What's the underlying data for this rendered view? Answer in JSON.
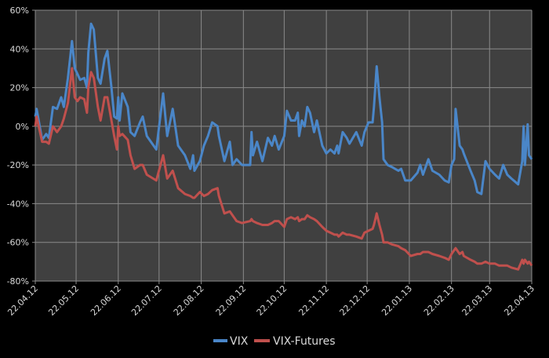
{
  "chart_data": {
    "type": "line",
    "title": "",
    "xlabel": "",
    "ylabel": "",
    "ylim": [
      -80,
      60
    ],
    "yticks": [
      60,
      40,
      20,
      0,
      -20,
      -40,
      -60,
      -80
    ],
    "ytick_labels": [
      "60%",
      "40%",
      "20%",
      "0%",
      "-20%",
      "-40%",
      "-60%",
      "-80%"
    ],
    "xlim": [
      "2012-04-22",
      "2013-04-22"
    ],
    "xticks": [
      "2012-04-22",
      "2012-05-22",
      "2012-06-22",
      "2012-07-22",
      "2012-08-22",
      "2012-09-22",
      "2012-10-22",
      "2012-11-22",
      "2012-12-22",
      "2013-01-22",
      "2013-02-22",
      "2013-03-22",
      "2013-04-22"
    ],
    "xtick_labels": [
      "22.04.12",
      "22.05.12",
      "22.06.12",
      "22.07.12",
      "22.08.12",
      "22.09.12",
      "22.10.12",
      "22.11.12",
      "22.12.12",
      "22.01.13",
      "22.02.13",
      "22.03.13",
      "22.04.13"
    ],
    "grid": true,
    "legend": "bottom",
    "background": "#404040",
    "x": [
      "2012-04-22",
      "2012-04-23",
      "2012-04-27",
      "2012-04-30",
      "2012-05-02",
      "2012-05-05",
      "2012-05-08",
      "2012-05-11",
      "2012-05-13",
      "2012-05-16",
      "2012-05-19",
      "2012-05-21",
      "2012-05-23",
      "2012-05-25",
      "2012-05-28",
      "2012-05-30",
      "2012-05-31",
      "2012-06-02",
      "2012-06-04",
      "2012-06-07",
      "2012-06-09",
      "2012-06-12",
      "2012-06-14",
      "2012-06-17",
      "2012-06-19",
      "2012-06-21",
      "2012-06-22",
      "2012-06-23",
      "2012-06-25",
      "2012-06-29",
      "2012-07-01",
      "2012-07-04",
      "2012-07-08",
      "2012-07-10",
      "2012-07-13",
      "2012-07-20",
      "2012-07-25",
      "2012-07-28",
      "2012-08-01",
      "2012-08-05",
      "2012-08-10",
      "2012-08-14",
      "2012-08-16",
      "2012-08-17",
      "2012-08-21",
      "2012-08-24",
      "2012-08-27",
      "2012-08-30",
      "2012-09-03",
      "2012-09-04",
      "2012-09-08",
      "2012-09-12",
      "2012-09-14",
      "2012-09-17",
      "2012-09-21",
      "2012-09-27",
      "2012-09-28",
      "2012-09-29",
      "2012-10-02",
      "2012-10-06",
      "2012-10-10",
      "2012-10-13",
      "2012-10-15",
      "2012-10-18",
      "2012-10-22",
      "2012-10-24",
      "2012-10-27",
      "2012-10-30",
      "2012-11-01",
      "2012-11-02",
      "2012-11-04",
      "2012-11-06",
      "2012-11-08",
      "2012-11-10",
      "2012-11-13",
      "2012-11-15",
      "2012-11-19",
      "2012-11-22",
      "2012-11-25",
      "2012-11-28",
      "2012-11-30",
      "2012-12-01",
      "2012-12-04",
      "2012-12-07",
      "2012-12-09",
      "2012-12-14",
      "2012-12-18",
      "2012-12-20",
      "2012-12-23",
      "2012-12-26",
      "2012-12-27",
      "2012-12-29",
      "2012-12-31",
      "2013-01-02",
      "2013-01-03",
      "2013-01-06",
      "2013-01-09",
      "2013-01-14",
      "2013-01-16",
      "2013-01-19",
      "2013-01-23",
      "2013-01-28",
      "2013-01-30",
      "2013-02-01",
      "2013-02-05",
      "2013-02-08",
      "2013-02-13",
      "2013-02-17",
      "2013-02-20",
      "2013-02-22",
      "2013-02-24",
      "2013-02-25",
      "2013-02-28",
      "2013-03-02",
      "2013-03-03",
      "2013-03-08",
      "2013-03-11",
      "2013-03-13",
      "2013-03-16",
      "2013-03-19",
      "2013-03-22",
      "2013-03-26",
      "2013-03-29",
      "2013-04-01",
      "2013-04-04",
      "2013-04-07",
      "2013-04-12",
      "2013-04-15",
      "2013-04-16",
      "2013-04-17",
      "2013-04-19",
      "2013-04-20",
      "2013-04-22"
    ],
    "series": [
      {
        "name": "VIX",
        "color": "#4a86c8",
        "values": [
          5,
          9,
          -7,
          -4,
          -6,
          10,
          9,
          15,
          10,
          25,
          44,
          30,
          27,
          24,
          25,
          20,
          38,
          53,
          50,
          25,
          22,
          35,
          39,
          20,
          5,
          4,
          15,
          3,
          17,
          10,
          -3,
          -5,
          2,
          5,
          -5,
          -12,
          17,
          -5,
          9,
          -10,
          -15,
          -22,
          -15,
          -23,
          -18,
          -10,
          -5,
          2,
          0,
          -5,
          -18,
          -8,
          -20,
          -17,
          -20,
          -20,
          -3,
          -15,
          -8,
          -18,
          -6,
          -10,
          -5,
          -12,
          -5,
          8,
          3,
          3,
          7,
          -5,
          3,
          0,
          10,
          7,
          -3,
          3,
          -10,
          -14,
          -12,
          -14,
          -10,
          -14,
          -3,
          -6,
          -9,
          -3,
          -10,
          -3,
          2,
          2,
          10,
          31,
          15,
          2,
          -17,
          -20,
          -21,
          -23,
          -22,
          -28,
          -28,
          -24,
          -20,
          -25,
          -17,
          -23,
          -25,
          -28,
          -29,
          -20,
          -17,
          9,
          -10,
          -12,
          -14,
          -23,
          -28,
          -34,
          -35,
          -18,
          -22,
          -25,
          -27,
          -20,
          -25,
          -27,
          -30,
          -18,
          0,
          -20,
          1,
          -15,
          -17
        ]
      },
      {
        "name": "VIX-Futures",
        "color": "#c0504d",
        "values": [
          0,
          5,
          -8,
          -8,
          -9,
          0,
          -3,
          0,
          4,
          12,
          30,
          15,
          13,
          15,
          14,
          7,
          20,
          28,
          25,
          10,
          3,
          15,
          15,
          3,
          -5,
          -12,
          0,
          -5,
          -4,
          -7,
          -15,
          -22,
          -20,
          -20,
          -25,
          -28,
          -15,
          -27,
          -23,
          -32,
          -35,
          -36,
          -37,
          -37,
          -34,
          -36,
          -35,
          -33,
          -32,
          -36,
          -45,
          -44,
          -46,
          -49,
          -50,
          -49,
          -48,
          -49,
          -50,
          -51,
          -51,
          -50,
          -49,
          -49,
          -52,
          -48,
          -47,
          -48,
          -47,
          -49,
          -48,
          -48,
          -46,
          -47,
          -48,
          -49,
          -52,
          -54,
          -55,
          -56,
          -56,
          -57,
          -55,
          -56,
          -56,
          -57,
          -58,
          -55,
          -54,
          -53,
          -51,
          -45,
          -51,
          -56,
          -60,
          -60,
          -61,
          -62,
          -63,
          -64,
          -67,
          -66,
          -66,
          -65,
          -65,
          -66,
          -67,
          -68,
          -69,
          -66,
          -64,
          -63,
          -66,
          -65,
          -67,
          -69,
          -70,
          -71,
          -71,
          -70,
          -71,
          -71,
          -72,
          -72,
          -72,
          -73,
          -74,
          -69,
          -71,
          -69,
          -71,
          -70,
          -72
        ]
      }
    ]
  }
}
